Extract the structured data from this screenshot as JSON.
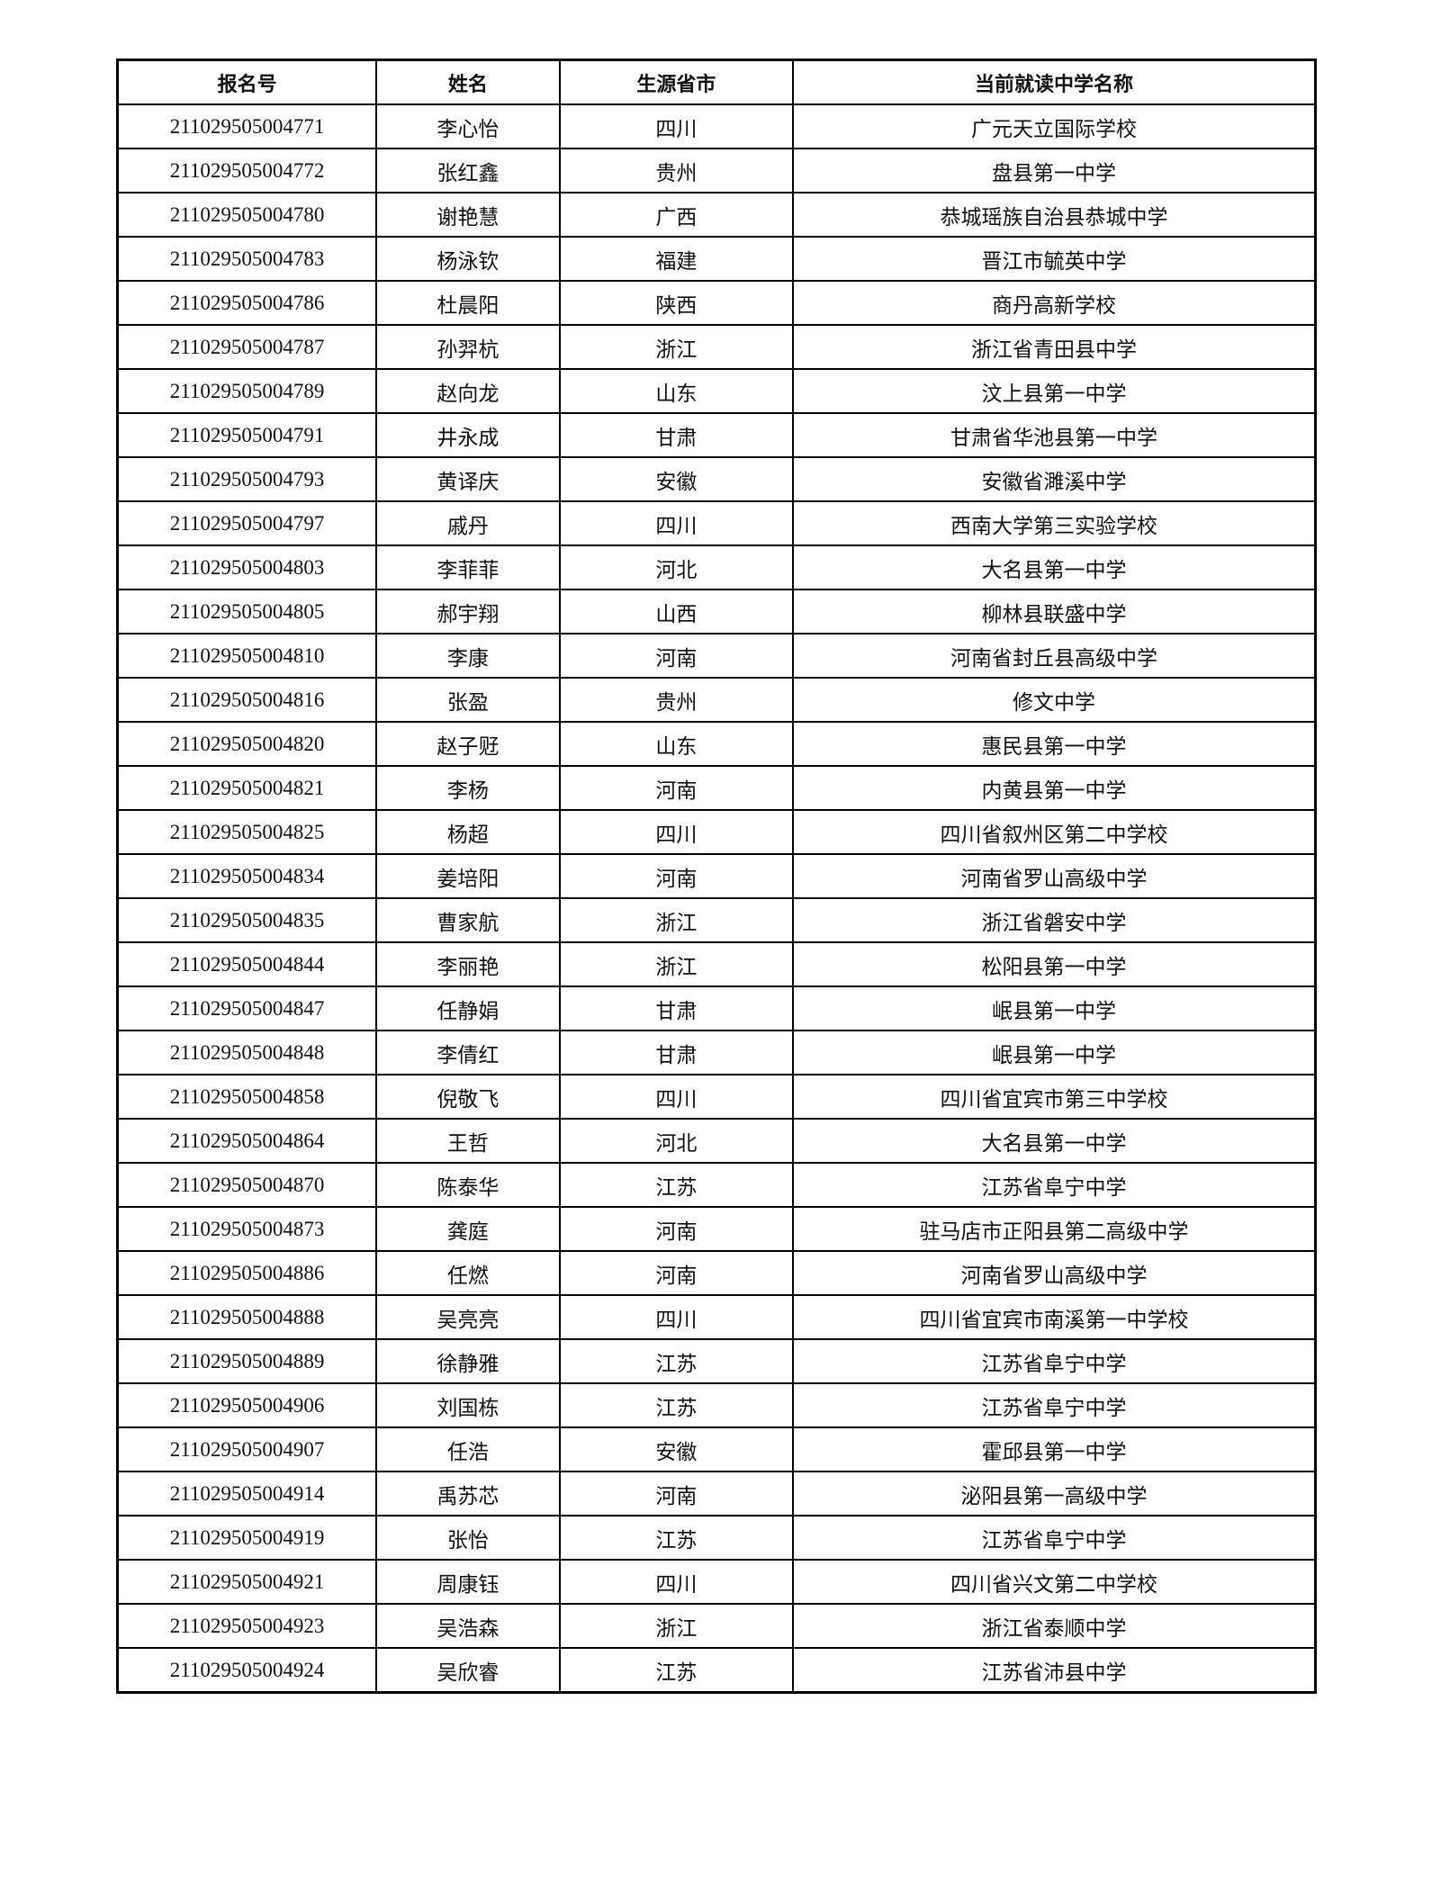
{
  "table": {
    "headers": [
      "报名号",
      "姓名",
      "生源省市",
      "当前就读中学名称"
    ],
    "rows": [
      [
        "211029505004771",
        "李心怡",
        "四川",
        "广元天立国际学校"
      ],
      [
        "211029505004772",
        "张红鑫",
        "贵州",
        "盘县第一中学"
      ],
      [
        "211029505004780",
        "谢艳慧",
        "广西",
        "恭城瑶族自治县恭城中学"
      ],
      [
        "211029505004783",
        "杨泳钦",
        "福建",
        "晋江市毓英中学"
      ],
      [
        "211029505004786",
        "杜晨阳",
        "陕西",
        "商丹高新学校"
      ],
      [
        "211029505004787",
        "孙羿杭",
        "浙江",
        "浙江省青田县中学"
      ],
      [
        "211029505004789",
        "赵向龙",
        "山东",
        "汶上县第一中学"
      ],
      [
        "211029505004791",
        "井永成",
        "甘肃",
        "甘肃省华池县第一中学"
      ],
      [
        "211029505004793",
        "黄译庆",
        "安徽",
        "安徽省濉溪中学"
      ],
      [
        "211029505004797",
        "戚丹",
        "四川",
        "西南大学第三实验学校"
      ],
      [
        "211029505004803",
        "李菲菲",
        "河北",
        "大名县第一中学"
      ],
      [
        "211029505004805",
        "郝宇翔",
        "山西",
        "柳林县联盛中学"
      ],
      [
        "211029505004810",
        "李康",
        "河南",
        "河南省封丘县高级中学"
      ],
      [
        "211029505004816",
        "张盈",
        "贵州",
        "修文中学"
      ],
      [
        "211029505004820",
        "赵子觃",
        "山东",
        "惠民县第一中学"
      ],
      [
        "211029505004821",
        "李杨",
        "河南",
        "内黄县第一中学"
      ],
      [
        "211029505004825",
        "杨超",
        "四川",
        "四川省叙州区第二中学校"
      ],
      [
        "211029505004834",
        "姜培阳",
        "河南",
        "河南省罗山高级中学"
      ],
      [
        "211029505004835",
        "曹家航",
        "浙江",
        "浙江省磐安中学"
      ],
      [
        "211029505004844",
        "李丽艳",
        "浙江",
        "松阳县第一中学"
      ],
      [
        "211029505004847",
        "任静娟",
        "甘肃",
        "岷县第一中学"
      ],
      [
        "211029505004848",
        "李倩红",
        "甘肃",
        "岷县第一中学"
      ],
      [
        "211029505004858",
        "倪敬飞",
        "四川",
        "四川省宜宾市第三中学校"
      ],
      [
        "211029505004864",
        "王哲",
        "河北",
        "大名县第一中学"
      ],
      [
        "211029505004870",
        "陈泰华",
        "江苏",
        "江苏省阜宁中学"
      ],
      [
        "211029505004873",
        "龚庭",
        "河南",
        "驻马店市正阳县第二高级中学"
      ],
      [
        "211029505004886",
        "任燃",
        "河南",
        "河南省罗山高级中学"
      ],
      [
        "211029505004888",
        "吴亮亮",
        "四川",
        "四川省宜宾市南溪第一中学校"
      ],
      [
        "211029505004889",
        "徐静雅",
        "江苏",
        "江苏省阜宁中学"
      ],
      [
        "211029505004906",
        "刘国栋",
        "江苏",
        "江苏省阜宁中学"
      ],
      [
        "211029505004907",
        "任浩",
        "安徽",
        "霍邱县第一中学"
      ],
      [
        "211029505004914",
        "禹苏芯",
        "河南",
        "泌阳县第一高级中学"
      ],
      [
        "211029505004919",
        "张怡",
        "江苏",
        "江苏省阜宁中学"
      ],
      [
        "211029505004921",
        "周康钰",
        "四川",
        "四川省兴文第二中学校"
      ],
      [
        "211029505004923",
        "吴浩森",
        "浙江",
        "浙江省泰顺中学"
      ],
      [
        "211029505004924",
        "吴欣睿",
        "江苏",
        "江苏省沛县中学"
      ]
    ]
  }
}
